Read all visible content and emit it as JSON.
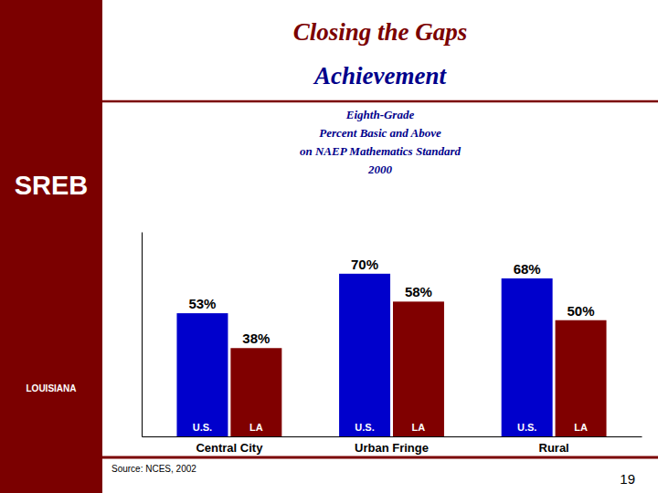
{
  "chart_data": {
    "type": "bar",
    "title": [
      "Closing the Gaps",
      "Achievement"
    ],
    "subtitle": "Eighth-Grade\nPercent Basic and Above\non NAEP Mathematics Standard\n2000",
    "annotations": [
      "SREB",
      "LOUISIANA",
      "Source: NCES, 2002",
      "19"
    ],
    "categories": [
      "Central City",
      "Urban Fringe",
      "Rural"
    ],
    "series": [
      {
        "name": "U.S.",
        "color": "#0000CC",
        "values": [
          53,
          70,
          68
        ],
        "value_labels": [
          "53%",
          "70%",
          "68%"
        ]
      },
      {
        "name": "LA",
        "color": "#800000",
        "values": [
          38,
          58,
          50
        ],
        "value_labels": [
          "38%",
          "58%",
          "50%"
        ]
      }
    ],
    "ylim": [
      0,
      88
    ],
    "grid": false,
    "data_labels": true,
    "tick_labels": "x"
  }
}
